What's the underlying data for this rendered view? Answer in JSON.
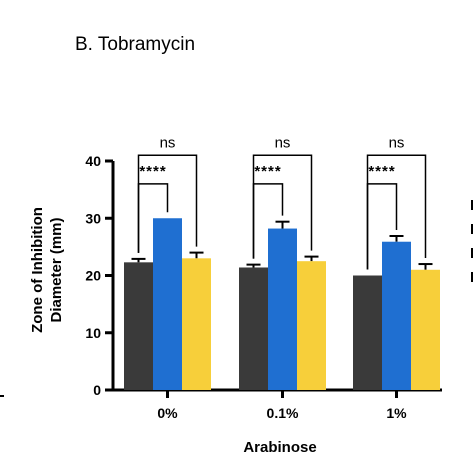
{
  "chart_data": {
    "type": "bar",
    "title": "B. Tobramycin",
    "ylabel_line1": "Zone of Inhibition",
    "ylabel_line2": "Diameter (mm)",
    "xlabel": "Arabinose",
    "categories": [
      "0%",
      "0.1%",
      "1%"
    ],
    "ylim": [
      0,
      40
    ],
    "yticks": [
      0,
      10,
      20,
      30,
      40
    ],
    "series": [
      {
        "color": "#3a3a3a",
        "values": [
          22.3,
          21.4,
          20.0
        ],
        "errors": [
          0.6,
          0.5,
          0.0
        ]
      },
      {
        "color": "#1f6fd1",
        "values": [
          30.0,
          28.2,
          25.9
        ],
        "errors": [
          0.0,
          1.2,
          1.0
        ]
      },
      {
        "color": "#f7cf3a",
        "values": [
          23.0,
          22.5,
          21.0
        ],
        "errors": [
          1.0,
          0.8,
          1.0
        ]
      }
    ],
    "comparisons": [
      {
        "label": "****",
        "from_series": 0,
        "to_series": 1,
        "y": 36
      },
      {
        "label": "ns",
        "from_series": 0,
        "to_series": 2,
        "y": 41
      }
    ]
  }
}
